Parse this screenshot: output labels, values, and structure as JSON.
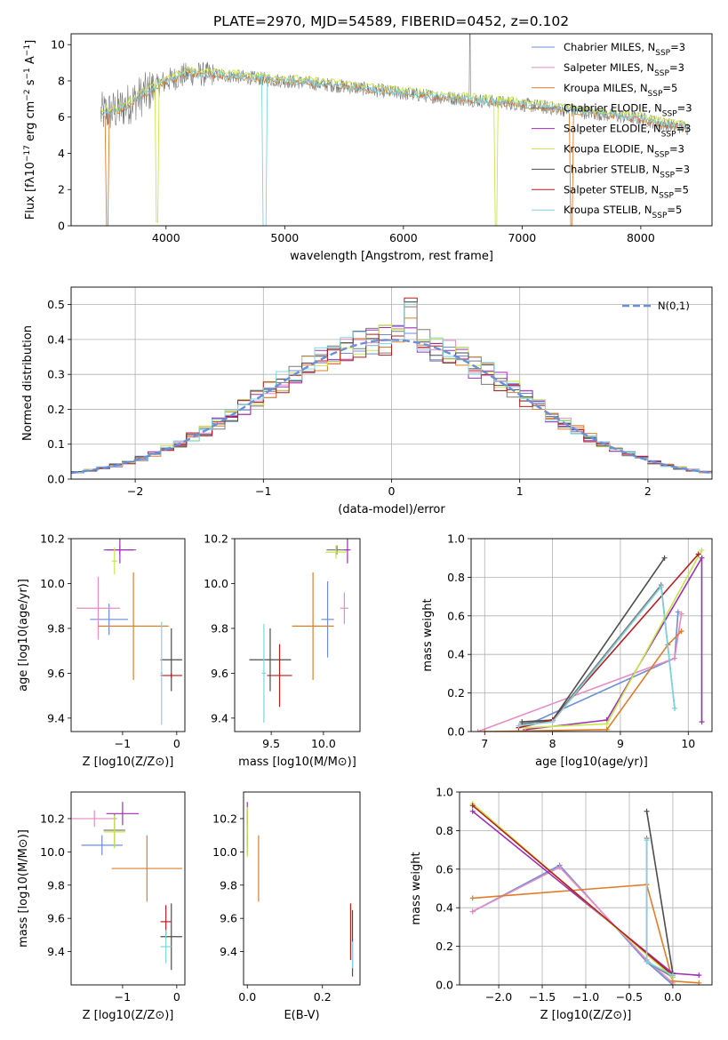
{
  "figure_title": "PLATE=2970, MJD=54589, FIBERID=0452, z=0.102",
  "colors": {
    "Chabrier MILES": "#6b8fd6",
    "Salpeter MILES": "#e48cc4",
    "Kroupa MILES": "#de7d2a",
    "Chabrier ELODIE": "#7a7a7a",
    "Salpeter ELODIE": "#9b30b4",
    "Kroupa ELODIE": "#c8e64a",
    "Chabrier STELIB": "#4d4d4d",
    "Salpeter STELIB": "#b41e1e",
    "Kroupa STELIB": "#7fd4e0",
    "normal": "#6a8fd8"
  },
  "chart_data": [
    {
      "id": "spectrum",
      "type": "line",
      "xlabel": "wavelength [Angstrom, rest frame]",
      "ylabel": "Flux [fλ10⁻¹⁷ erg cm⁻² s⁻¹ A⁻¹]",
      "xlim": [
        3200,
        8600
      ],
      "ylim": [
        0,
        10.6
      ],
      "xticks": [
        4000,
        5000,
        6000,
        7000,
        8000
      ],
      "yticks": [
        0,
        2,
        4,
        6,
        8,
        10
      ],
      "legend_position": "top-right",
      "continuum": [
        [
          3450,
          6.2
        ],
        [
          3600,
          6.4
        ],
        [
          3800,
          7.2
        ],
        [
          4000,
          8.0
        ],
        [
          4200,
          8.4
        ],
        [
          4500,
          8.3
        ],
        [
          5000,
          8.0
        ],
        [
          5500,
          7.7
        ],
        [
          6000,
          7.3
        ],
        [
          6500,
          7.0
        ],
        [
          7000,
          6.7
        ],
        [
          7500,
          6.3
        ],
        [
          8000,
          5.9
        ],
        [
          8200,
          5.6
        ],
        [
          8400,
          5.4
        ]
      ],
      "series": [
        {
          "name": "Chabrier MILES",
          "nssp": "3"
        },
        {
          "name": "Salpeter MILES",
          "nssp": "3"
        },
        {
          "name": "Kroupa MILES",
          "nssp": "5"
        },
        {
          "name": "Chabrier ELODIE",
          "nssp": "3"
        },
        {
          "name": "Salpeter ELODIE",
          "nssp": "3"
        },
        {
          "name": "Kroupa ELODIE",
          "nssp": "3"
        },
        {
          "name": "Chabrier STELIB",
          "nssp": "3"
        },
        {
          "name": "Salpeter STELIB",
          "nssp": "5"
        },
        {
          "name": "Kroupa STELIB",
          "nssp": "5"
        }
      ]
    },
    {
      "id": "residuals",
      "type": "line",
      "xlabel": "(data-model)/error",
      "ylabel": "Normed distribution",
      "xlim": [
        -2.5,
        2.5
      ],
      "ylim": [
        0,
        0.55
      ],
      "xticks": [
        -2,
        -1,
        0,
        1,
        2
      ],
      "yticks": [
        0.0,
        0.1,
        0.2,
        0.3,
        0.4,
        0.5
      ],
      "grid": true,
      "legend_position": "top-right",
      "reference": {
        "name": "N(0,1)",
        "mean": 0,
        "sigma": 1
      },
      "bin_width": 0.1
    },
    {
      "id": "age_vs_Z",
      "type": "scatter",
      "xlabel": "Z [log10(Z/Z⊙)]",
      "ylabel": "age [log10(age/yr)]",
      "xlim": [
        -1.95,
        0.15
      ],
      "ylim": [
        9.34,
        10.2
      ],
      "xticks": [
        -1,
        0
      ],
      "yticks": [
        9.4,
        9.6,
        9.8,
        10.0,
        10.2
      ],
      "points": [
        {
          "name": "Chabrier MILES",
          "x": -1.25,
          "xerr": 0.35,
          "y": 9.84,
          "yerr": 0.07
        },
        {
          "name": "Salpeter MILES",
          "x": -1.45,
          "xerr": 0.4,
          "y": 9.89,
          "yerr": 0.14
        },
        {
          "name": "Kroupa MILES",
          "x": -0.8,
          "xerr": 0.65,
          "y": 9.81,
          "yerr": 0.24
        },
        {
          "name": "Chabrier ELODIE",
          "x": -1.05,
          "xerr": 0.3,
          "y": 10.15,
          "yerr": 0.02
        },
        {
          "name": "Salpeter ELODIE",
          "x": -1.05,
          "xerr": 0.25,
          "y": 10.15,
          "yerr": 0.06
        },
        {
          "name": "Kroupa ELODIE",
          "x": -1.15,
          "xerr": 0.05,
          "y": 10.1,
          "yerr": 0.06
        },
        {
          "name": "Chabrier STELIB",
          "x": -0.1,
          "xerr": 0.2,
          "y": 9.66,
          "yerr": 0.14
        },
        {
          "name": "Salpeter STELIB",
          "x": -0.1,
          "xerr": 0.2,
          "y": 9.59,
          "yerr": 0.01
        },
        {
          "name": "Kroupa STELIB",
          "x": -0.28,
          "xerr": 0.02,
          "y": 9.6,
          "yerr": 0.23
        }
      ]
    },
    {
      "id": "age_vs_mass",
      "type": "scatter",
      "xlabel": "mass [log10(M/M⊙)]",
      "ylabel": "",
      "xlim": [
        9.15,
        10.35
      ],
      "ylim": [
        9.34,
        10.2
      ],
      "xticks": [
        9.5,
        10.0
      ],
      "yticks": [
        9.4,
        9.6,
        9.8,
        10.0,
        10.2
      ],
      "points": [
        {
          "name": "Chabrier MILES",
          "x": 10.04,
          "xerr": 0.06,
          "y": 9.84,
          "yerr": 0.17
        },
        {
          "name": "Salpeter MILES",
          "x": 10.2,
          "xerr": 0.04,
          "y": 9.89,
          "yerr": 0.07
        },
        {
          "name": "Kroupa MILES",
          "x": 9.9,
          "xerr": 0.2,
          "y": 9.81,
          "yerr": 0.24
        },
        {
          "name": "Chabrier ELODIE",
          "x": 10.13,
          "xerr": 0.1,
          "y": 10.15,
          "yerr": 0.02
        },
        {
          "name": "Salpeter ELODIE",
          "x": 10.23,
          "xerr": 0.03,
          "y": 10.15,
          "yerr": 0.06
        },
        {
          "name": "Kroupa ELODIE",
          "x": 10.12,
          "xerr": 0.1,
          "y": 10.14,
          "yerr": 0.03
        },
        {
          "name": "Chabrier STELIB",
          "x": 9.49,
          "xerr": 0.2,
          "y": 9.66,
          "yerr": 0.14
        },
        {
          "name": "Salpeter STELIB",
          "x": 9.58,
          "xerr": 0.12,
          "y": 9.59,
          "yerr": 0.14
        },
        {
          "name": "Kroupa STELIB",
          "x": 9.43,
          "xerr": 0.02,
          "y": 9.6,
          "yerr": 0.22
        }
      ]
    },
    {
      "id": "massweight_vs_age",
      "type": "line",
      "xlabel": "age [log10(age/yr)]",
      "ylabel": "mass weight",
      "xlim": [
        6.8,
        10.35
      ],
      "ylim": [
        0,
        1.0
      ],
      "xticks": [
        7,
        8,
        9,
        10
      ],
      "yticks": [
        0.0,
        0.2,
        0.4,
        0.6,
        0.8,
        1.0
      ],
      "grid": true,
      "series": [
        {
          "name": "Chabrier MILES",
          "points": [
            [
              7.6,
              0.03
            ],
            [
              9.8,
              0.38
            ],
            [
              9.85,
              0.62
            ]
          ]
        },
        {
          "name": "Salpeter MILES",
          "points": [
            [
              6.9,
              0.0
            ],
            [
              9.8,
              0.38
            ],
            [
              9.9,
              0.61
            ]
          ]
        },
        {
          "name": "Kroupa MILES",
          "points": [
            [
              7.0,
              0.0
            ],
            [
              8.8,
              0.01
            ],
            [
              9.7,
              0.45
            ],
            [
              9.9,
              0.52
            ]
          ]
        },
        {
          "name": "Chabrier ELODIE",
          "points": [
            [
              7.55,
              0.04
            ],
            [
              8.0,
              0.06
            ],
            [
              9.6,
              0.76
            ],
            [
              9.8,
              0.12
            ]
          ]
        },
        {
          "name": "Salpeter ELODIE",
          "points": [
            [
              7.6,
              0.01
            ],
            [
              8.8,
              0.06
            ],
            [
              10.2,
              0.9
            ],
            [
              10.2,
              0.05
            ]
          ]
        },
        {
          "name": "Kroupa ELODIE",
          "points": [
            [
              7.6,
              0.02
            ],
            [
              8.8,
              0.04
            ],
            [
              10.2,
              0.94
            ]
          ]
        },
        {
          "name": "Chabrier STELIB",
          "points": [
            [
              7.55,
              0.05
            ],
            [
              8.0,
              0.06
            ],
            [
              9.65,
              0.9
            ]
          ]
        },
        {
          "name": "Salpeter STELIB",
          "points": [
            [
              7.5,
              0.02
            ],
            [
              8.0,
              0.06
            ],
            [
              10.15,
              0.92
            ]
          ]
        },
        {
          "name": "Kroupa STELIB",
          "points": [
            [
              7.5,
              0.03
            ],
            [
              8.0,
              0.05
            ],
            [
              9.6,
              0.75
            ],
            [
              9.8,
              0.12
            ]
          ]
        }
      ]
    },
    {
      "id": "mass_vs_Z",
      "type": "scatter",
      "xlabel": "Z [log10(Z/Z⊙)]",
      "ylabel": "mass [log10(M/M⊙)]",
      "xlim": [
        -1.95,
        0.15
      ],
      "ylim": [
        9.2,
        10.36
      ],
      "xticks": [
        -1,
        0
      ],
      "yticks": [
        9.4,
        9.6,
        9.8,
        10.0,
        10.2
      ],
      "points": [
        {
          "name": "Chabrier MILES",
          "x": -1.38,
          "xerr": 0.38,
          "y": 10.04,
          "yerr": 0.06
        },
        {
          "name": "Salpeter MILES",
          "x": -1.52,
          "xerr": 0.42,
          "y": 10.2,
          "yerr": 0.05
        },
        {
          "name": "Kroupa MILES",
          "x": -0.55,
          "xerr": 0.65,
          "y": 9.9,
          "yerr": 0.2
        },
        {
          "name": "Chabrier ELODIE",
          "x": -1.15,
          "xerr": 0.2,
          "y": 10.13,
          "yerr": 0.1
        },
        {
          "name": "Salpeter ELODIE",
          "x": -1.0,
          "xerr": 0.3,
          "y": 10.23,
          "yerr": 0.07
        },
        {
          "name": "Kroupa ELODIE",
          "x": -1.15,
          "xerr": 0.2,
          "y": 10.12,
          "yerr": 0.1
        },
        {
          "name": "Chabrier STELIB",
          "x": -0.1,
          "xerr": 0.2,
          "y": 9.49,
          "yerr": 0.2
        },
        {
          "name": "Salpeter STELIB",
          "x": -0.2,
          "xerr": 0.1,
          "y": 9.58,
          "yerr": 0.1
        },
        {
          "name": "Kroupa STELIB",
          "x": -0.2,
          "xerr": 0.1,
          "y": 9.43,
          "yerr": 0.1
        }
      ]
    },
    {
      "id": "mass_vs_ebv",
      "type": "scatter",
      "xlabel": "E(B-V)",
      "ylabel": "",
      "xlim": [
        -0.01,
        0.3
      ],
      "ylim": [
        9.2,
        10.36
      ],
      "xticks": [
        0.0,
        0.2
      ],
      "yticks": [
        9.4,
        9.6,
        9.8,
        10.0,
        10.2
      ],
      "points": [
        {
          "name": "Chabrier MILES",
          "x": 0.0,
          "y": 10.04,
          "yerr": 0.06
        },
        {
          "name": "Salpeter MILES",
          "x": 0.0,
          "y": 10.2,
          "yerr": 0.05
        },
        {
          "name": "Kroupa MILES",
          "x": 0.03,
          "y": 9.9,
          "yerr": 0.2
        },
        {
          "name": "Chabrier ELODIE",
          "x": 0.0,
          "y": 10.13,
          "yerr": 0.1
        },
        {
          "name": "Salpeter ELODIE",
          "x": 0.0,
          "y": 10.23,
          "yerr": 0.07
        },
        {
          "name": "Kroupa ELODIE",
          "x": 0.0,
          "y": 10.12,
          "yerr": 0.15
        },
        {
          "name": "Chabrier STELIB",
          "x": 0.28,
          "y": 9.45,
          "yerr": 0.2
        },
        {
          "name": "Salpeter STELIB",
          "x": 0.275,
          "y": 9.52,
          "yerr": 0.17
        },
        {
          "name": "Kroupa STELIB",
          "x": 0.28,
          "y": 9.38,
          "yerr": 0.08
        }
      ]
    },
    {
      "id": "massweight_vs_Z",
      "type": "line",
      "xlabel": "Z [log10(Z/Z⊙)]",
      "ylabel": "mass weight",
      "xlim": [
        -2.45,
        0.45
      ],
      "ylim": [
        0,
        1.0
      ],
      "xticks": [
        -2.0,
        -1.5,
        -1.0,
        -0.5,
        0.0
      ],
      "yticks": [
        0.0,
        0.2,
        0.4,
        0.6,
        0.8,
        1.0
      ],
      "grid": true,
      "series": [
        {
          "name": "Chabrier MILES",
          "points": [
            [
              -2.3,
              0.38
            ],
            [
              -1.3,
              0.62
            ],
            [
              -0.3,
              0.12
            ],
            [
              0.0,
              0.0
            ]
          ]
        },
        {
          "name": "Salpeter MILES",
          "points": [
            [
              -2.3,
              0.38
            ],
            [
              -1.3,
              0.61
            ],
            [
              -0.3,
              0.13
            ],
            [
              0.0,
              0.01
            ]
          ]
        },
        {
          "name": "Kroupa MILES",
          "points": [
            [
              -2.3,
              0.45
            ],
            [
              -0.3,
              0.52
            ],
            [
              0.0,
              0.02
            ],
            [
              0.3,
              0.01
            ]
          ]
        },
        {
          "name": "Chabrier ELODIE",
          "points": [
            [
              -0.3,
              0.76
            ],
            [
              -0.3,
              0.12
            ],
            [
              0.0,
              0.04
            ]
          ]
        },
        {
          "name": "Salpeter ELODIE",
          "points": [
            [
              -2.3,
              0.9
            ],
            [
              0.0,
              0.06
            ],
            [
              0.3,
              0.05
            ]
          ]
        },
        {
          "name": "Kroupa ELODIE",
          "points": [
            [
              -2.3,
              0.94
            ],
            [
              0.0,
              0.04
            ]
          ]
        },
        {
          "name": "Chabrier STELIB",
          "points": [
            [
              -0.3,
              0.9
            ],
            [
              0.0,
              0.06
            ]
          ]
        },
        {
          "name": "Salpeter STELIB",
          "points": [
            [
              -2.3,
              0.93
            ],
            [
              0.0,
              0.05
            ]
          ]
        },
        {
          "name": "Kroupa STELIB",
          "points": [
            [
              -0.3,
              0.75
            ],
            [
              -0.3,
              0.12
            ],
            [
              0.0,
              0.05
            ]
          ]
        }
      ]
    }
  ]
}
